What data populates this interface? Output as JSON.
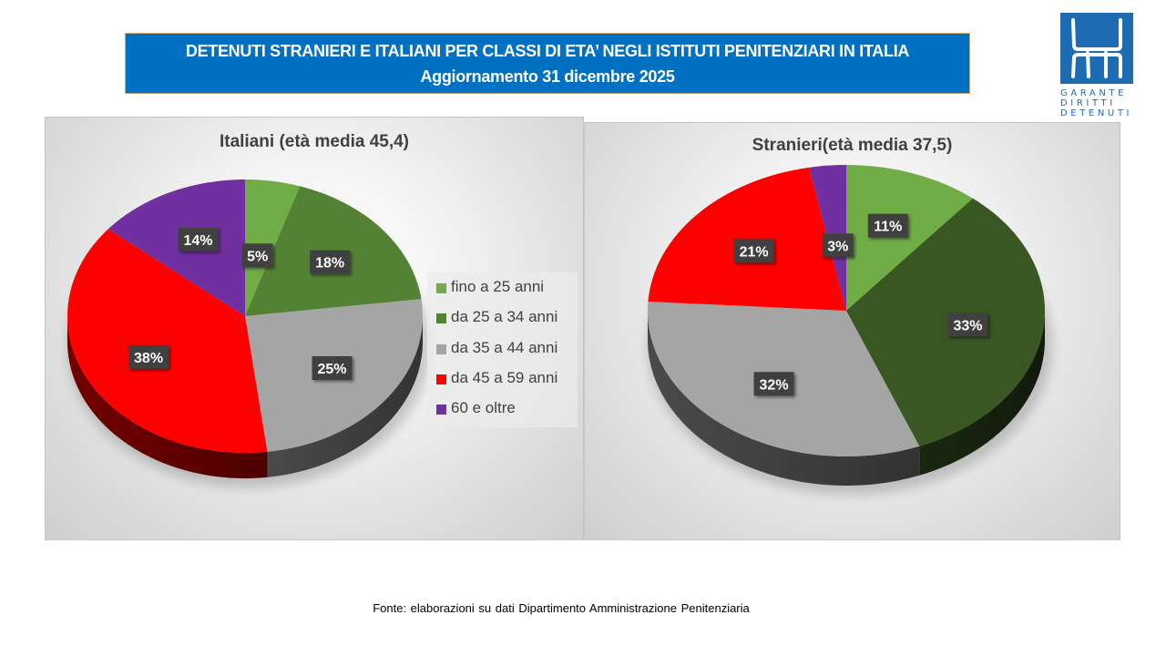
{
  "header": {
    "title_line1": "DETENUTI STRANIERI  E ITALIANI PER CLASSI DI ETA’ NEGLI ISTITUTI PENITENZIARI IN ITALIA",
    "title_line2": "Aggiornamento 31 dicembre 2025",
    "title_bg_color": "#0070c0"
  },
  "logo": {
    "icon": "garante-logo-icon",
    "lines": [
      "GARANTE",
      "DIRITTI",
      "DETENUTI"
    ]
  },
  "footer": {
    "source": "Fonte: elaborazioni su dati Dipartimento Amministrazione Penitenziaria"
  },
  "legend": {
    "items": [
      {
        "label": "fino a 25 anni",
        "color": "#70ad47"
      },
      {
        "label": "da 25 a 34 anni",
        "color": "#548235"
      },
      {
        "label": "da 35 a 44 anni",
        "color": "#a5a5a5"
      },
      {
        "label": "da 45 a 59 anni",
        "color": "#ff0000"
      },
      {
        "label": "60 e oltre",
        "color": "#7030a0"
      }
    ]
  },
  "chart_data": [
    {
      "type": "pie",
      "title": "Italiani (età media 45,4)",
      "categories": [
        "fino a 25 anni",
        "da 25 a 34 anni",
        "da 35 a 44 anni",
        "da 45 a 59 anni",
        "60 e oltre"
      ],
      "values": [
        5,
        18,
        25,
        38,
        14
      ],
      "labels": [
        "5%",
        "18%",
        "25%",
        "38%",
        "14%"
      ],
      "unit": "%",
      "colors": [
        "#70ad47",
        "#548235",
        "#a5a5a5",
        "#ff0000",
        "#7030a0"
      ],
      "legend": "right",
      "style": "3d",
      "start": "12 o'clock, clockwise"
    },
    {
      "type": "pie",
      "title": "Stranieri(età media 37,5)",
      "categories": [
        "fino a 25 anni",
        "da 25 a 34 anni",
        "da 35 a 44 anni",
        "da 45 a 59 anni",
        "60 e oltre"
      ],
      "values": [
        11,
        33,
        32,
        21,
        3
      ],
      "labels": [
        "11%",
        "33%",
        "32%",
        "21%",
        "3%"
      ],
      "unit": "%",
      "colors": [
        "#70ad47",
        "#385723",
        "#a5a5a5",
        "#ff0000",
        "#7030a0"
      ],
      "legend": "none",
      "style": "3d",
      "start": "12 o'clock, clockwise"
    }
  ]
}
